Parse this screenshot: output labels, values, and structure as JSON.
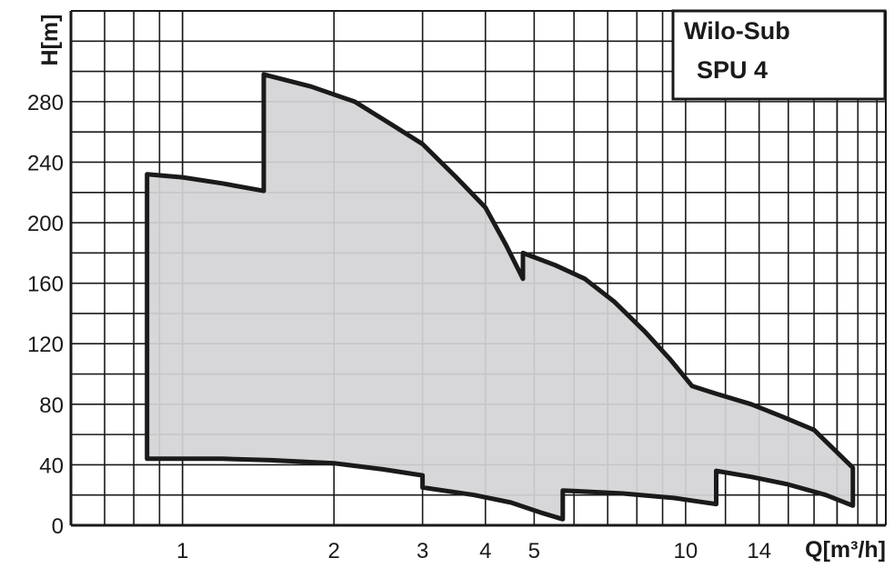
{
  "chart_data": {
    "type": "area",
    "title": "Wilo-Sub",
    "subtitle": "SPU 4",
    "xlabel": "Q[m³/h]",
    "ylabel": "H[m]",
    "x_scale": "log",
    "xlim": [
      0.6,
      25
    ],
    "ylim": [
      0,
      340
    ],
    "x_ticks": [
      {
        "value": 1,
        "label": "1"
      },
      {
        "value": 2,
        "label": "2"
      },
      {
        "value": 3,
        "label": "3"
      },
      {
        "value": 4,
        "label": "4"
      },
      {
        "value": 5,
        "label": "5"
      },
      {
        "value": 10,
        "label": "10"
      },
      {
        "value": 14,
        "label": "14"
      }
    ],
    "y_ticks": [
      {
        "value": 0,
        "label": "0"
      },
      {
        "value": 40,
        "label": "40"
      },
      {
        "value": 80,
        "label": "80"
      },
      {
        "value": 120,
        "label": "120"
      },
      {
        "value": 160,
        "label": "160"
      },
      {
        "value": 200,
        "label": "200"
      },
      {
        "value": 240,
        "label": "240"
      },
      {
        "value": 280,
        "label": "280"
      }
    ],
    "grid": true,
    "colors": {
      "fill": "#d4d4d6",
      "outline": "#1a1a1a",
      "grid": "#1a1a1a"
    },
    "series": [
      {
        "values": [
          [
            0.85,
            232
          ],
          [
            1.0,
            230
          ],
          [
            1.2,
            226
          ],
          [
            1.45,
            221
          ],
          [
            1.45,
            298
          ],
          [
            1.8,
            290
          ],
          [
            2.2,
            280
          ],
          [
            2.6,
            265
          ],
          [
            3.0,
            252
          ],
          [
            3.5,
            230
          ],
          [
            4.0,
            210
          ],
          [
            4.4,
            185
          ],
          [
            4.75,
            163
          ],
          [
            4.75,
            180
          ],
          [
            5.5,
            172
          ],
          [
            6.3,
            163
          ],
          [
            7.2,
            148
          ],
          [
            8.3,
            128
          ],
          [
            9.3,
            110
          ],
          [
            10.3,
            92
          ],
          [
            11.5,
            87
          ],
          [
            13.5,
            80
          ],
          [
            15.5,
            72
          ],
          [
            18.0,
            63
          ],
          [
            21.5,
            38
          ],
          [
            21.5,
            13
          ],
          [
            19.0,
            20
          ],
          [
            16.0,
            27
          ],
          [
            13.5,
            32
          ],
          [
            11.5,
            36
          ],
          [
            11.5,
            14
          ],
          [
            9.5,
            18
          ],
          [
            7.5,
            21
          ],
          [
            5.7,
            23
          ],
          [
            5.7,
            4
          ],
          [
            5.2,
            8
          ],
          [
            4.5,
            15
          ],
          [
            3.8,
            20
          ],
          [
            3.0,
            25
          ],
          [
            3.0,
            33
          ],
          [
            2.5,
            37
          ],
          [
            2.0,
            41
          ],
          [
            1.5,
            43
          ],
          [
            1.2,
            44
          ],
          [
            0.85,
            44
          ]
        ]
      }
    ]
  }
}
